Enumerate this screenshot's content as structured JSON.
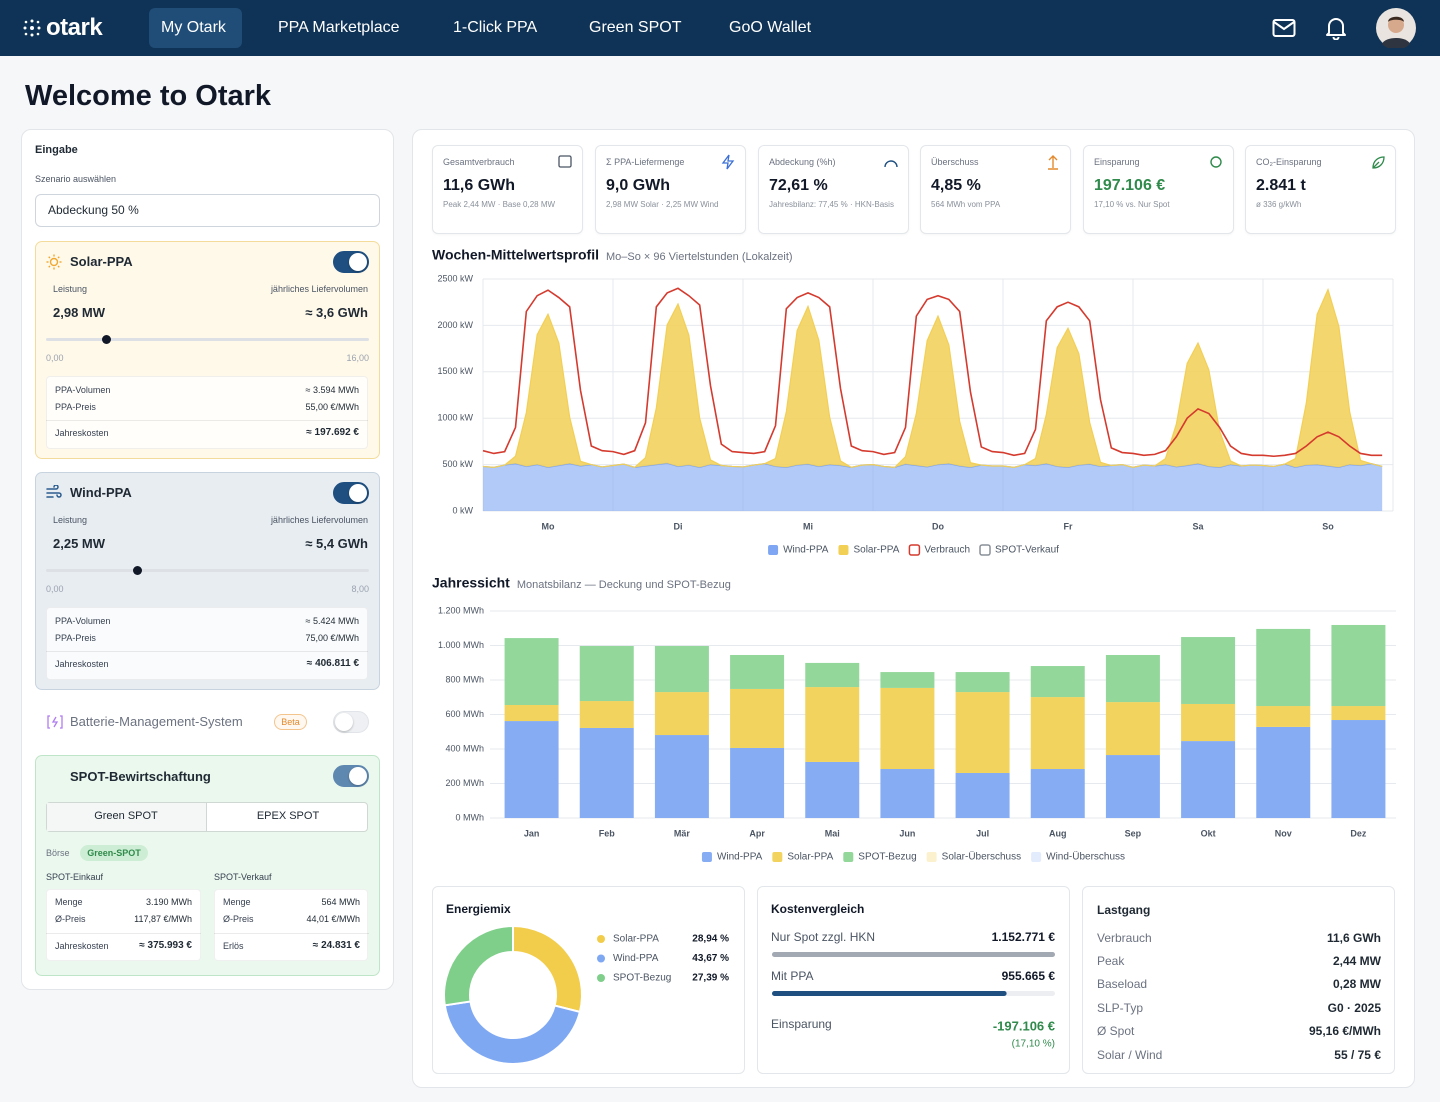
{
  "nav": {
    "logo": "otark",
    "items": [
      "My Otark",
      "PPA Marketplace",
      "1-Click PPA",
      "Green SPOT",
      "GoO Wallet"
    ]
  },
  "page_title": "Welcome to Otark",
  "input": {
    "title": "Eingabe",
    "scenario_label": "Szenario auswählen",
    "scenario": "Abdeckung 50 %",
    "solar": {
      "title": "Solar-PPA",
      "power_label": "Leistung",
      "volume_label": "jährliches Liefervolumen",
      "power": "2,98 MW",
      "volume": "≈ 3,6 GWh",
      "slider": {
        "value": 2.98,
        "min": {
          "value": 0,
          "label": "0,00"
        },
        "max": {
          "value": 16,
          "label": "16,00"
        }
      },
      "rows": [
        [
          "PPA-Volumen",
          "≈ 3.594 MWh"
        ],
        [
          "PPA-Preis",
          "55,00 €/MWh"
        ],
        [
          "Jahreskosten",
          "≈ 197.692 €"
        ]
      ]
    },
    "wind": {
      "title": "Wind-PPA",
      "power_label": "Leistung",
      "volume_label": "jährliches Liefervolumen",
      "power": "2,25 MW",
      "volume": "≈ 5,4 GWh",
      "slider": {
        "value": 2.25,
        "min": {
          "value": 0,
          "label": "0,00"
        },
        "max": {
          "value": 8,
          "label": "8,00"
        }
      },
      "rows": [
        [
          "PPA-Volumen",
          "≈ 5.424 MWh"
        ],
        [
          "PPA-Preis",
          "75,00 €/MWh"
        ],
        [
          "Jahreskosten",
          "≈ 406.811 €"
        ]
      ]
    },
    "battery": {
      "title": "Batterie-Management-System",
      "badge": "Beta"
    },
    "spot": {
      "title": "SPOT-Bewirtschaftung",
      "tabs": [
        "Green SPOT",
        "EPEX SPOT"
      ],
      "exchange_label": "Börse",
      "exchange": "Green-SPOT",
      "buy": {
        "title": "SPOT-Einkauf",
        "rows": [
          [
            "Menge",
            "3.190 MWh"
          ],
          [
            "Ø-Preis",
            "117,87 €/MWh"
          ],
          [
            "Jahreskosten",
            "≈ 375.993 €"
          ]
        ]
      },
      "sell": {
        "title": "SPOT-Verkauf",
        "rows": [
          [
            "Menge",
            "564 MWh"
          ],
          [
            "Ø-Preis",
            "44,01 €/MWh"
          ],
          [
            "Erlös",
            "≈ 24.831 €"
          ]
        ]
      }
    }
  },
  "kpis": [
    {
      "label": "Gesamtverbrauch",
      "value": "11,6 GWh",
      "sub": "Peak 2,44 MW · Base 0,28 MW"
    },
    {
      "label": "Σ PPA-Liefermenge",
      "value": "9,0 GWh",
      "sub": "2,98 MW Solar · 2,25 MW Wind"
    },
    {
      "label": "Abdeckung (%h)",
      "value": "72,61 %",
      "sub": "Jahresbilanz: 77,45 % · HKN-Basis"
    },
    {
      "label": "Überschuss",
      "value": "4,85 %",
      "sub": "564 MWh vom PPA"
    },
    {
      "label": "Einsparung",
      "value": "197.106 €",
      "sub": "17,10 % vs. Nur Spot"
    },
    {
      "label": "CO₂-Einsparung",
      "value": "2.841 t",
      "sub": "ø 336 g/kWh"
    }
  ],
  "chart_data": [
    {
      "type": "area",
      "title": "Wochen-Mittelwertsprofil",
      "subtitle": "Mo–So × 96 Viertelstunden (Lokalzeit)",
      "x": [
        0,
        2,
        4,
        6,
        8,
        10,
        12,
        14,
        16,
        18,
        20,
        22,
        24,
        26,
        28,
        30,
        32,
        34,
        36,
        38,
        40,
        42,
        44,
        46,
        48,
        50,
        52,
        54,
        56,
        58,
        60,
        62,
        64,
        66,
        68,
        70,
        72,
        74,
        76,
        78,
        80,
        82,
        84,
        86,
        88,
        90,
        92,
        94,
        96,
        98,
        100,
        102,
        104,
        106,
        108,
        110,
        112,
        114,
        116,
        118,
        120,
        122,
        124,
        126,
        128,
        130,
        132,
        134,
        136,
        138,
        140,
        142,
        144,
        146,
        148,
        150,
        152,
        154,
        156,
        158,
        160,
        162,
        164,
        166
      ],
      "xlim": [
        0,
        168
      ],
      "xticks": [
        {
          "value": 12,
          "label": "Mo"
        },
        {
          "value": 36,
          "label": "Di"
        },
        {
          "value": 60,
          "label": "Mi"
        },
        {
          "value": 84,
          "label": "Do"
        },
        {
          "value": 108,
          "label": "Fr"
        },
        {
          "value": 132,
          "label": "Sa"
        },
        {
          "value": 156,
          "label": "So"
        }
      ],
      "ylim": [
        0,
        2500
      ],
      "yticks": [
        {
          "value": 0,
          "label": "0 kW"
        },
        {
          "value": 500,
          "label": "500 kW"
        },
        {
          "value": 1000,
          "label": "1000 kW"
        },
        {
          "value": 1500,
          "label": "1500 kW"
        },
        {
          "value": 2000,
          "label": "2000 kW"
        },
        {
          "value": 2500,
          "label": "2500 kW"
        }
      ],
      "grid": true,
      "series": [
        {
          "name": "Wind-PPA",
          "color": "#7fa6f2",
          "style": "area",
          "values": [
            480,
            470,
            495,
            510,
            480,
            500,
            470,
            490,
            510,
            485,
            500,
            475,
            490,
            505,
            470,
            485,
            500,
            515,
            480,
            495,
            470,
            500,
            490,
            480,
            475,
            495,
            510,
            480,
            470,
            495,
            505,
            480,
            500,
            490,
            470,
            495,
            500,
            480,
            470,
            505,
            490,
            475,
            500,
            510,
            485,
            470,
            495,
            485,
            485,
            470,
            500,
            490,
            510,
            480,
            470,
            495,
            505,
            480,
            490,
            500,
            470,
            495,
            485,
            500,
            475,
            490,
            510,
            480,
            470,
            500,
            485,
            495,
            490,
            480,
            505,
            470,
            495,
            500,
            485,
            470,
            500,
            490,
            510,
            480
          ]
        },
        {
          "name": "Solar-PPA",
          "color": "#f2cf55",
          "style": "area",
          "values": [
            0,
            0,
            0,
            80,
            580,
            1400,
            1650,
            1320,
            500,
            50,
            0,
            0,
            0,
            0,
            0,
            90,
            610,
            1490,
            1750,
            1400,
            530,
            50,
            0,
            0,
            0,
            0,
            0,
            85,
            600,
            1450,
            1700,
            1360,
            510,
            50,
            0,
            0,
            0,
            0,
            0,
            80,
            560,
            1360,
            1600,
            1280,
            480,
            50,
            0,
            0,
            0,
            0,
            0,
            75,
            530,
            1280,
            1500,
            1200,
            450,
            45,
            0,
            0,
            0,
            0,
            0,
            65,
            460,
            1100,
            1300,
            1040,
            390,
            40,
            0,
            0,
            0,
            0,
            0,
            95,
            670,
            1620,
            1900,
            1520,
            570,
            55,
            0,
            0
          ]
        },
        {
          "name": "Verbrauch",
          "color": "#d43a2e",
          "style": "line",
          "values": [
            650,
            620,
            640,
            900,
            2150,
            2320,
            2380,
            2300,
            2200,
            1300,
            700,
            650,
            640,
            610,
            650,
            950,
            2200,
            2350,
            2400,
            2320,
            2220,
            1350,
            720,
            640,
            630,
            620,
            640,
            920,
            2180,
            2300,
            2350,
            2300,
            2200,
            1320,
            700,
            650,
            640,
            610,
            630,
            900,
            2100,
            2280,
            2320,
            2280,
            2150,
            1280,
            690,
            640,
            630,
            600,
            620,
            880,
            2050,
            2200,
            2250,
            2200,
            2050,
            1200,
            680,
            630,
            620,
            600,
            610,
            650,
            800,
            1000,
            1100,
            1050,
            900,
            700,
            620,
            600,
            600,
            590,
            600,
            620,
            700,
            800,
            850,
            800,
            700,
            620,
            600,
            600
          ]
        },
        {
          "name": "SPOT-Verkauf",
          "color": "#8a9099",
          "style": "line",
          "values": [
            null,
            null,
            null,
            null,
            null,
            null,
            null,
            null,
            null,
            null,
            null,
            null,
            null,
            null,
            null,
            null,
            null,
            null,
            null,
            null,
            null,
            null,
            null,
            null,
            null,
            null,
            null,
            null,
            null,
            null,
            null,
            null,
            null,
            null,
            null,
            null,
            null,
            null,
            null,
            null,
            null,
            null,
            null,
            null,
            null,
            null,
            null,
            null,
            null,
            null,
            null,
            null,
            null,
            null,
            null,
            null,
            null,
            null,
            null,
            null,
            null,
            null,
            null,
            null,
            null,
            null,
            null,
            null,
            null,
            null,
            null,
            null,
            null,
            null,
            null,
            null,
            null,
            null,
            null,
            null,
            null,
            null,
            null,
            null
          ]
        }
      ]
    },
    {
      "type": "bar",
      "stacked": true,
      "title": "Jahressicht",
      "subtitle": "Monatsbilanz — Deckung und SPOT-Bezug",
      "categories": [
        "Jan",
        "Feb",
        "Mär",
        "Apr",
        "Mai",
        "Jun",
        "Jul",
        "Aug",
        "Sep",
        "Okt",
        "Nov",
        "Dez"
      ],
      "ylim": [
        0,
        1200
      ],
      "yticks": [
        {
          "value": 0,
          "label": "0 MWh"
        },
        {
          "value": 200,
          "label": "200 MWh"
        },
        {
          "value": 400,
          "label": "400 MWh"
        },
        {
          "value": 600,
          "label": "600 MWh"
        },
        {
          "value": 800,
          "label": "800 MWh"
        },
        {
          "value": 1000,
          "label": "1.000 MWh"
        },
        {
          "value": 1200,
          "label": "1.200 MWh"
        }
      ],
      "grid": true,
      "series": [
        {
          "name": "Wind-PPA",
          "color": "#86adf3",
          "values": [
            562,
            522,
            481,
            406,
            325,
            284,
            261,
            284,
            365,
            446,
            528,
            568
          ]
        },
        {
          "name": "Solar-PPA",
          "color": "#f2d35e",
          "values": [
            93,
            156,
            249,
            342,
            434,
            470,
            469,
            417,
            307,
            215,
            121,
            81
          ]
        },
        {
          "name": "SPOT-Bezug",
          "color": "#93d79b",
          "values": [
            388,
            319,
            267,
            197,
            140,
            92,
            116,
            180,
            273,
            388,
            447,
            470
          ]
        },
        {
          "name": "Solar-Überschuss",
          "color": "#fcf1cf",
          "values": [
            0,
            0,
            0,
            0,
            0,
            0,
            0,
            0,
            0,
            0,
            0,
            0
          ]
        },
        {
          "name": "Wind-Überschuss",
          "color": "#e3ecfc",
          "values": [
            0,
            0,
            0,
            0,
            0,
            0,
            0,
            0,
            0,
            0,
            0,
            0
          ]
        }
      ]
    },
    {
      "type": "pie",
      "title": "Energiemix",
      "categories": [
        "Solar-PPA",
        "Wind-PPA",
        "SPOT-Bezug"
      ],
      "values": [
        28.94,
        43.67,
        27.39
      ],
      "value_labels": [
        "28,94 %",
        "43,67 %",
        "27,39 %"
      ],
      "colors": [
        "#f2cd4c",
        "#7fa8f3",
        "#7fcf8b"
      ]
    },
    {
      "type": "hbar",
      "title": "Kostenvergleich",
      "categories": [
        "Nur Spot zzgl. HKN",
        "Mit PPA"
      ],
      "values": [
        1152771,
        955665
      ],
      "value_labels": [
        "1.152.771 €",
        "955.665 €"
      ],
      "colors": [
        "#a2a9b3",
        "#1e4f80"
      ],
      "xlim": [
        0,
        1152771
      ],
      "saving": {
        "label": "Einsparung",
        "value": "-197.106 €",
        "percent": "(17,10 %)"
      }
    }
  ],
  "load": {
    "title": "Lastgang",
    "rows": [
      [
        "Verbrauch",
        "11,6 GWh"
      ],
      [
        "Peak",
        "2,44 MW"
      ],
      [
        "Baseload",
        "0,28 MW"
      ],
      [
        "SLP-Typ",
        "G0 · 2025"
      ],
      [
        "Ø Spot",
        "95,16 €/MWh"
      ],
      [
        "Solar / Wind",
        "55 / 75 €"
      ]
    ]
  }
}
